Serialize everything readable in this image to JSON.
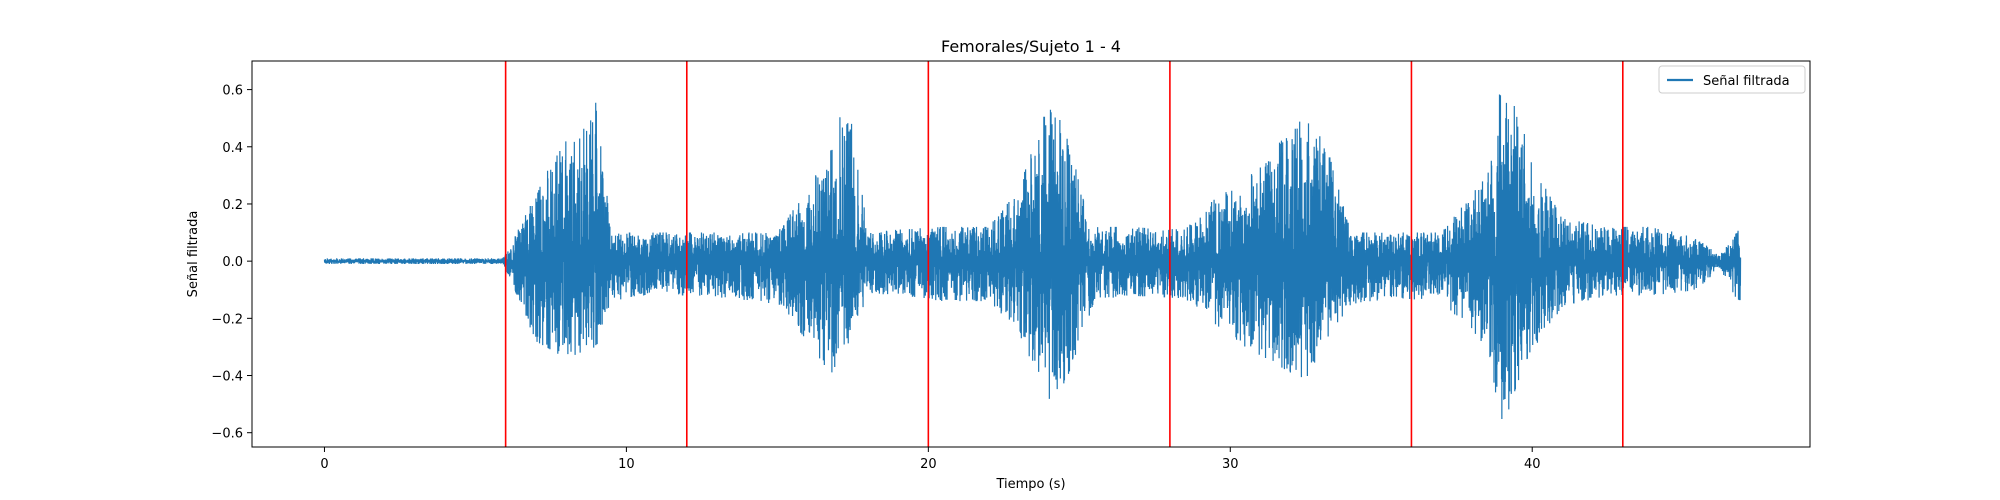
{
  "chart_data": {
    "type": "line",
    "title": "Femorales/Sujeto 1 - 4",
    "xlabel": "Tiempo (s)",
    "ylabel": "Señal filtrada",
    "xlim": [
      -2.4,
      49.2
    ],
    "ylim": [
      -0.65,
      0.7
    ],
    "xticks": [
      0,
      10,
      20,
      30,
      40
    ],
    "yticks": [
      -0.6,
      -0.4,
      -0.2,
      0.0,
      0.2,
      0.4,
      0.6
    ],
    "ytick_labels": [
      "−0.6",
      "−0.4",
      "−0.2",
      "0.0",
      "0.2",
      "0.4",
      "0.6"
    ],
    "grid": false,
    "legend": {
      "placement": "top-right",
      "entries": [
        {
          "name": "Señal filtrada",
          "color": "#1f77b4"
        }
      ]
    },
    "series": [
      {
        "name": "Señal filtrada",
        "color": "#1f77b4",
        "duration": [
          0,
          46.9
        ],
        "envelope": {
          "t": [
            0,
            5.9,
            6.1,
            7.0,
            8.0,
            8.5,
            9.0,
            9.5,
            10.5,
            12.0,
            13.5,
            15.0,
            16.0,
            16.8,
            17.3,
            18.0,
            19.0,
            20.5,
            22.0,
            23.0,
            23.7,
            24.2,
            24.8,
            25.5,
            26.5,
            28.5,
            29.5,
            30.5,
            31.5,
            32.5,
            33.2,
            34.0,
            35.5,
            37.0,
            38.5,
            39.0,
            39.5,
            40.2,
            41.0,
            42.5,
            44.0,
            45.5,
            46.2,
            46.9
          ],
          "upper": [
            0.01,
            0.01,
            0.04,
            0.25,
            0.42,
            0.48,
            0.56,
            0.1,
            0.1,
            0.1,
            0.1,
            0.1,
            0.25,
            0.4,
            0.59,
            0.1,
            0.11,
            0.12,
            0.12,
            0.25,
            0.48,
            0.58,
            0.35,
            0.12,
            0.12,
            0.11,
            0.22,
            0.28,
            0.4,
            0.51,
            0.4,
            0.1,
            0.1,
            0.1,
            0.3,
            0.64,
            0.52,
            0.3,
            0.15,
            0.12,
            0.12,
            0.08,
            0.02,
            0.12
          ],
          "lower": [
            -0.01,
            -0.01,
            -0.05,
            -0.28,
            -0.34,
            -0.32,
            -0.3,
            -0.14,
            -0.12,
            -0.12,
            -0.13,
            -0.15,
            -0.28,
            -0.4,
            -0.3,
            -0.12,
            -0.12,
            -0.14,
            -0.14,
            -0.25,
            -0.42,
            -0.52,
            -0.35,
            -0.14,
            -0.12,
            -0.13,
            -0.22,
            -0.3,
            -0.36,
            -0.42,
            -0.27,
            -0.15,
            -0.13,
            -0.14,
            -0.3,
            -0.59,
            -0.43,
            -0.28,
            -0.16,
            -0.12,
            -0.12,
            -0.1,
            -0.02,
            -0.16
          ]
        }
      }
    ],
    "vertical_lines": {
      "color": "#ff0000",
      "x": [
        6.0,
        12.0,
        20.0,
        28.0,
        36.0,
        43.0
      ]
    }
  }
}
